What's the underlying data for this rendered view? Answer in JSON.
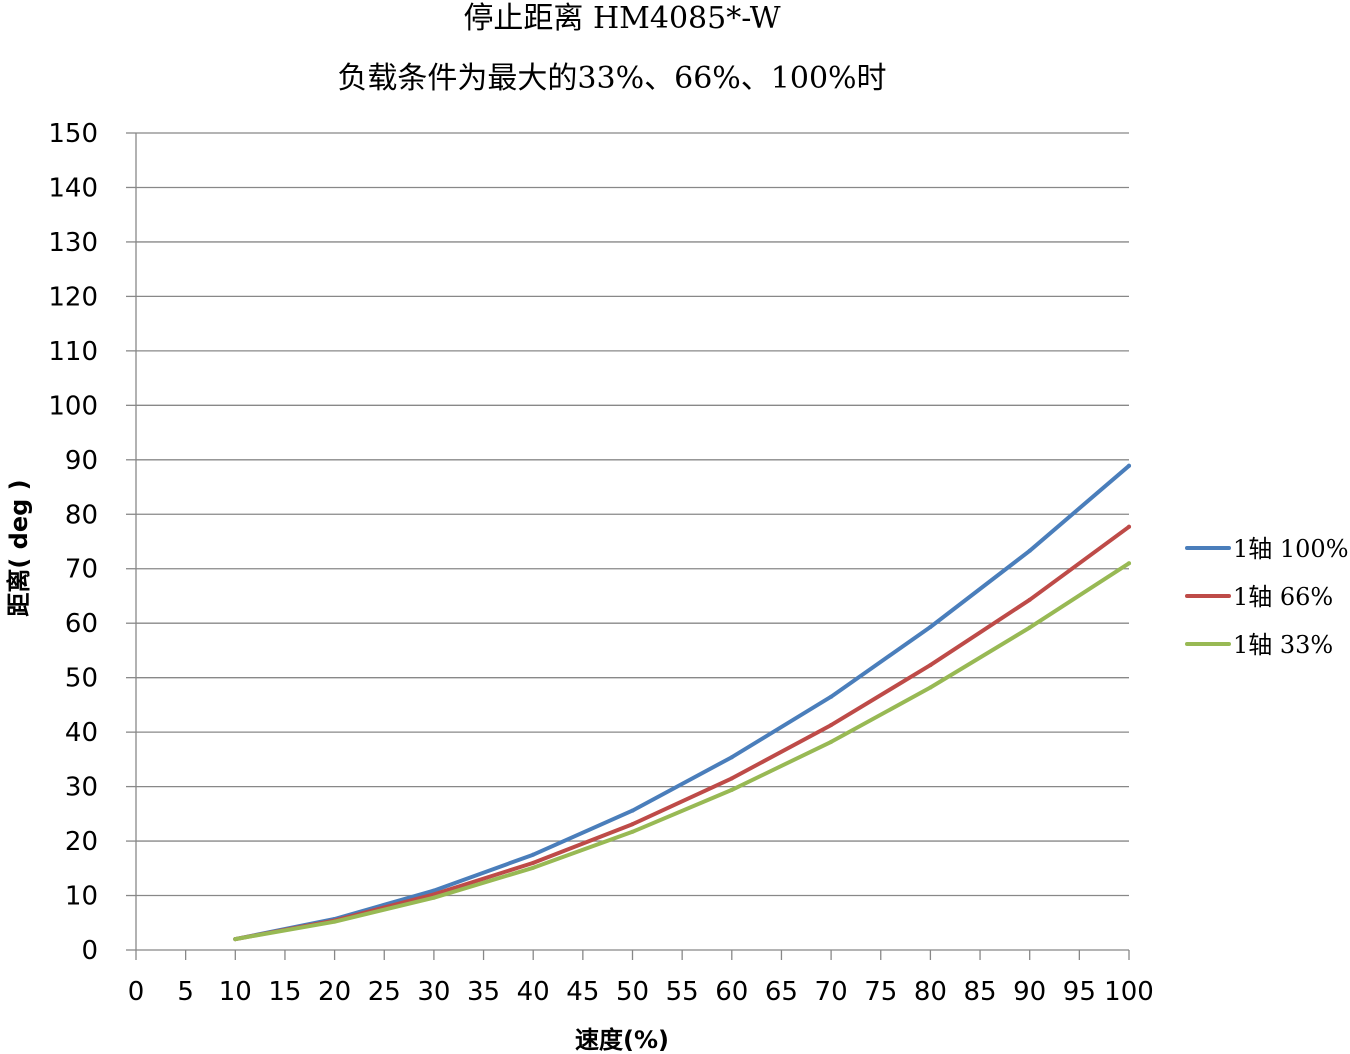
{
  "chart_data": {
    "type": "line",
    "title": "停止距离 HM4085*-W",
    "subtitle": "负载条件为最大的33%、66%、100%时",
    "xlabel": "速度(%)",
    "ylabel": "距离( deg )",
    "xlim": [
      0,
      100
    ],
    "ylim": [
      0,
      150
    ],
    "x_ticks": [
      0,
      5,
      10,
      15,
      20,
      25,
      30,
      35,
      40,
      45,
      50,
      55,
      60,
      65,
      70,
      75,
      80,
      85,
      90,
      95,
      100
    ],
    "y_ticks": [
      0,
      10,
      20,
      30,
      40,
      50,
      60,
      70,
      80,
      90,
      100,
      110,
      120,
      130,
      140,
      150
    ],
    "grid": "horizontal",
    "legend_position": "right",
    "x": [
      10,
      20,
      30,
      40,
      50,
      60,
      70,
      80,
      90,
      100
    ],
    "series": [
      {
        "name": "1轴 100%",
        "color": "#4a7ebb",
        "values": [
          2.0,
          5.7,
          10.9,
          17.5,
          25.6,
          35.4,
          46.5,
          59.3,
          73.3,
          88.9
        ]
      },
      {
        "name": "1轴 66%",
        "color": "#be4b48",
        "values": [
          2.0,
          5.4,
          10.2,
          16.0,
          23.1,
          31.5,
          41.3,
          52.3,
          64.3,
          77.7
        ]
      },
      {
        "name": "1轴 33%",
        "color": "#98b954",
        "values": [
          2.0,
          5.2,
          9.6,
          15.1,
          21.7,
          29.4,
          38.2,
          48.2,
          59.2,
          71.0
        ]
      }
    ]
  }
}
